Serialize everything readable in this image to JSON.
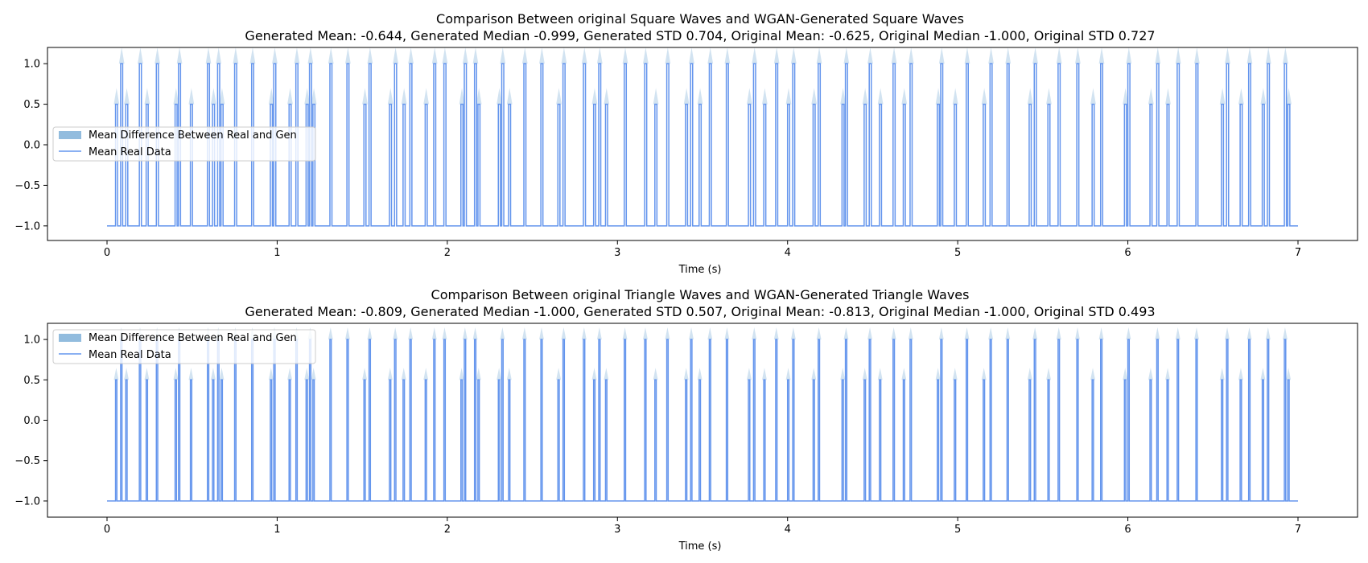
{
  "chart_data": [
    {
      "type": "line",
      "title": "Comparison Between original Square Waves and WGAN-Generated Square Waves",
      "subtitle": "Generated Mean: -0.644, Generated Median -0.999, Generated STD 0.704, Original Mean: -0.625, Original Median -1.000, Original STD 0.727",
      "xlabel": "Time (s)",
      "ylabel": "",
      "xlim": [
        -0.35,
        7.35
      ],
      "ylim": [
        -1.18,
        1.2
      ],
      "xticks": [
        "0",
        "1",
        "2",
        "3",
        "4",
        "5",
        "6",
        "7"
      ],
      "yticks": [
        "−1.0",
        "−0.5",
        "0.0",
        "0.5",
        "1.0"
      ],
      "grid": false,
      "legend": {
        "placement": "center-left",
        "entries": [
          "Mean Difference Between Real and Gen",
          "Mean Real Data"
        ]
      },
      "series": [
        {
          "name": "Mean Real Data",
          "kind": "pulse_train",
          "baseline": -1.0,
          "pulse_width": 0.012,
          "pulses": [
            [
              0.05,
              0.5
            ],
            [
              0.08,
              1.0
            ],
            [
              0.11,
              0.5
            ],
            [
              0.19,
              1.0
            ],
            [
              0.23,
              0.5
            ],
            [
              0.29,
              1.0
            ],
            [
              0.4,
              0.5
            ],
            [
              0.42,
              1.0
            ],
            [
              0.49,
              0.5
            ],
            [
              0.59,
              1.0
            ],
            [
              0.62,
              0.5
            ],
            [
              0.65,
              1.0
            ],
            [
              0.67,
              0.5
            ],
            [
              0.75,
              1.0
            ],
            [
              0.85,
              1.0
            ],
            [
              0.96,
              0.5
            ],
            [
              0.98,
              1.0
            ],
            [
              1.07,
              0.5
            ],
            [
              1.11,
              1.0
            ],
            [
              1.17,
              0.5
            ],
            [
              1.19,
              1.0
            ],
            [
              1.21,
              0.5
            ],
            [
              1.31,
              1.0
            ],
            [
              1.41,
              1.0
            ],
            [
              1.51,
              0.5
            ],
            [
              1.54,
              1.0
            ],
            [
              1.66,
              0.5
            ],
            [
              1.69,
              1.0
            ],
            [
              1.74,
              0.5
            ],
            [
              1.78,
              1.0
            ],
            [
              1.87,
              0.5
            ],
            [
              1.92,
              1.0
            ],
            [
              1.98,
              1.0
            ],
            [
              2.08,
              0.5
            ],
            [
              2.1,
              1.0
            ],
            [
              2.16,
              1.0
            ],
            [
              2.18,
              0.5
            ],
            [
              2.3,
              0.5
            ],
            [
              2.32,
              1.0
            ],
            [
              2.36,
              0.5
            ],
            [
              2.45,
              1.0
            ],
            [
              2.55,
              1.0
            ],
            [
              2.65,
              0.5
            ],
            [
              2.68,
              1.0
            ],
            [
              2.8,
              1.0
            ],
            [
              2.86,
              0.5
            ],
            [
              2.89,
              1.0
            ],
            [
              2.93,
              0.5
            ],
            [
              3.04,
              1.0
            ],
            [
              3.16,
              1.0
            ],
            [
              3.22,
              0.5
            ],
            [
              3.29,
              1.0
            ],
            [
              3.4,
              0.5
            ],
            [
              3.43,
              1.0
            ],
            [
              3.48,
              0.5
            ],
            [
              3.54,
              1.0
            ],
            [
              3.64,
              1.0
            ],
            [
              3.77,
              0.5
            ],
            [
              3.8,
              1.0
            ],
            [
              3.86,
              0.5
            ],
            [
              3.93,
              1.0
            ],
            [
              4.0,
              0.5
            ],
            [
              4.03,
              1.0
            ],
            [
              4.15,
              0.5
            ],
            [
              4.18,
              1.0
            ],
            [
              4.32,
              0.5
            ],
            [
              4.34,
              1.0
            ],
            [
              4.45,
              0.5
            ],
            [
              4.48,
              1.0
            ],
            [
              4.54,
              0.5
            ],
            [
              4.62,
              1.0
            ],
            [
              4.68,
              0.5
            ],
            [
              4.72,
              1.0
            ],
            [
              4.88,
              0.5
            ],
            [
              4.9,
              1.0
            ],
            [
              4.98,
              0.5
            ],
            [
              5.05,
              1.0
            ],
            [
              5.15,
              0.5
            ],
            [
              5.19,
              1.0
            ],
            [
              5.29,
              1.0
            ],
            [
              5.42,
              0.5
            ],
            [
              5.45,
              1.0
            ],
            [
              5.53,
              0.5
            ],
            [
              5.59,
              1.0
            ],
            [
              5.7,
              1.0
            ],
            [
              5.79,
              0.5
            ],
            [
              5.84,
              1.0
            ],
            [
              5.98,
              0.5
            ],
            [
              6.0,
              1.0
            ],
            [
              6.13,
              0.5
            ],
            [
              6.17,
              1.0
            ],
            [
              6.23,
              0.5
            ],
            [
              6.29,
              1.0
            ],
            [
              6.4,
              1.0
            ],
            [
              6.55,
              0.5
            ],
            [
              6.58,
              1.0
            ],
            [
              6.66,
              0.5
            ],
            [
              6.71,
              1.0
            ],
            [
              6.79,
              0.5
            ],
            [
              6.82,
              1.0
            ],
            [
              6.92,
              1.0
            ],
            [
              6.94,
              0.5
            ]
          ]
        }
      ]
    },
    {
      "type": "line",
      "title": "Comparison Between original Triangle Waves and WGAN-Generated Triangle Waves",
      "subtitle": "Generated Mean: -0.809, Generated Median -1.000, Generated STD 0.507, Original Mean: -0.813, Original Median -1.000, Original STD 0.493",
      "xlabel": "Time (s)",
      "ylabel": "",
      "xlim": [
        -0.35,
        7.35
      ],
      "ylim": [
        -1.2,
        1.2
      ],
      "xticks": [
        "0",
        "1",
        "2",
        "3",
        "4",
        "5",
        "6",
        "7"
      ],
      "yticks": [
        "−1.0",
        "−0.5",
        "0.0",
        "0.5",
        "1.0"
      ],
      "grid": false,
      "legend": {
        "placement": "top-left",
        "entries": [
          "Mean Difference Between Real and Gen",
          "Mean Real Data"
        ]
      },
      "series": [
        {
          "name": "Mean Real Data",
          "kind": "pulse_train",
          "baseline": -1.0,
          "pulse_width": 0.008,
          "pulses": [
            [
              0.05,
              0.5
            ],
            [
              0.08,
              1.0
            ],
            [
              0.11,
              0.5
            ],
            [
              0.19,
              1.0
            ],
            [
              0.23,
              0.5
            ],
            [
              0.29,
              1.0
            ],
            [
              0.4,
              0.5
            ],
            [
              0.42,
              1.0
            ],
            [
              0.49,
              0.5
            ],
            [
              0.59,
              1.0
            ],
            [
              0.62,
              0.5
            ],
            [
              0.65,
              1.0
            ],
            [
              0.67,
              0.5
            ],
            [
              0.75,
              1.0
            ],
            [
              0.85,
              1.0
            ],
            [
              0.96,
              0.5
            ],
            [
              0.98,
              1.0
            ],
            [
              1.07,
              0.5
            ],
            [
              1.11,
              1.0
            ],
            [
              1.17,
              0.5
            ],
            [
              1.19,
              1.0
            ],
            [
              1.21,
              0.5
            ],
            [
              1.31,
              1.0
            ],
            [
              1.41,
              1.0
            ],
            [
              1.51,
              0.5
            ],
            [
              1.54,
              1.0
            ],
            [
              1.66,
              0.5
            ],
            [
              1.69,
              1.0
            ],
            [
              1.74,
              0.5
            ],
            [
              1.78,
              1.0
            ],
            [
              1.87,
              0.5
            ],
            [
              1.92,
              1.0
            ],
            [
              1.98,
              1.0
            ],
            [
              2.08,
              0.5
            ],
            [
              2.1,
              1.0
            ],
            [
              2.16,
              1.0
            ],
            [
              2.18,
              0.5
            ],
            [
              2.3,
              0.5
            ],
            [
              2.32,
              1.0
            ],
            [
              2.36,
              0.5
            ],
            [
              2.45,
              1.0
            ],
            [
              2.55,
              1.0
            ],
            [
              2.65,
              0.5
            ],
            [
              2.68,
              1.0
            ],
            [
              2.8,
              1.0
            ],
            [
              2.86,
              0.5
            ],
            [
              2.89,
              1.0
            ],
            [
              2.93,
              0.5
            ],
            [
              3.04,
              1.0
            ],
            [
              3.16,
              1.0
            ],
            [
              3.22,
              0.5
            ],
            [
              3.29,
              1.0
            ],
            [
              3.4,
              0.5
            ],
            [
              3.43,
              1.0
            ],
            [
              3.48,
              0.5
            ],
            [
              3.54,
              1.0
            ],
            [
              3.64,
              1.0
            ],
            [
              3.77,
              0.5
            ],
            [
              3.8,
              1.0
            ],
            [
              3.86,
              0.5
            ],
            [
              3.93,
              1.0
            ],
            [
              4.0,
              0.5
            ],
            [
              4.03,
              1.0
            ],
            [
              4.15,
              0.5
            ],
            [
              4.18,
              1.0
            ],
            [
              4.32,
              0.5
            ],
            [
              4.34,
              1.0
            ],
            [
              4.45,
              0.5
            ],
            [
              4.48,
              1.0
            ],
            [
              4.54,
              0.5
            ],
            [
              4.62,
              1.0
            ],
            [
              4.68,
              0.5
            ],
            [
              4.72,
              1.0
            ],
            [
              4.88,
              0.5
            ],
            [
              4.9,
              1.0
            ],
            [
              4.98,
              0.5
            ],
            [
              5.05,
              1.0
            ],
            [
              5.15,
              0.5
            ],
            [
              5.19,
              1.0
            ],
            [
              5.29,
              1.0
            ],
            [
              5.42,
              0.5
            ],
            [
              5.45,
              1.0
            ],
            [
              5.53,
              0.5
            ],
            [
              5.59,
              1.0
            ],
            [
              5.7,
              1.0
            ],
            [
              5.79,
              0.5
            ],
            [
              5.84,
              1.0
            ],
            [
              5.98,
              0.5
            ],
            [
              6.0,
              1.0
            ],
            [
              6.13,
              0.5
            ],
            [
              6.17,
              1.0
            ],
            [
              6.23,
              0.5
            ],
            [
              6.29,
              1.0
            ],
            [
              6.4,
              1.0
            ],
            [
              6.55,
              0.5
            ],
            [
              6.58,
              1.0
            ],
            [
              6.66,
              0.5
            ],
            [
              6.71,
              1.0
            ],
            [
              6.79,
              0.5
            ],
            [
              6.82,
              1.0
            ],
            [
              6.92,
              1.0
            ],
            [
              6.94,
              0.5
            ]
          ]
        }
      ]
    }
  ],
  "colors": {
    "line": "#6495ED",
    "fill": "#7fb0d8",
    "axis": "#000000",
    "legend_border": "#cccccc"
  }
}
